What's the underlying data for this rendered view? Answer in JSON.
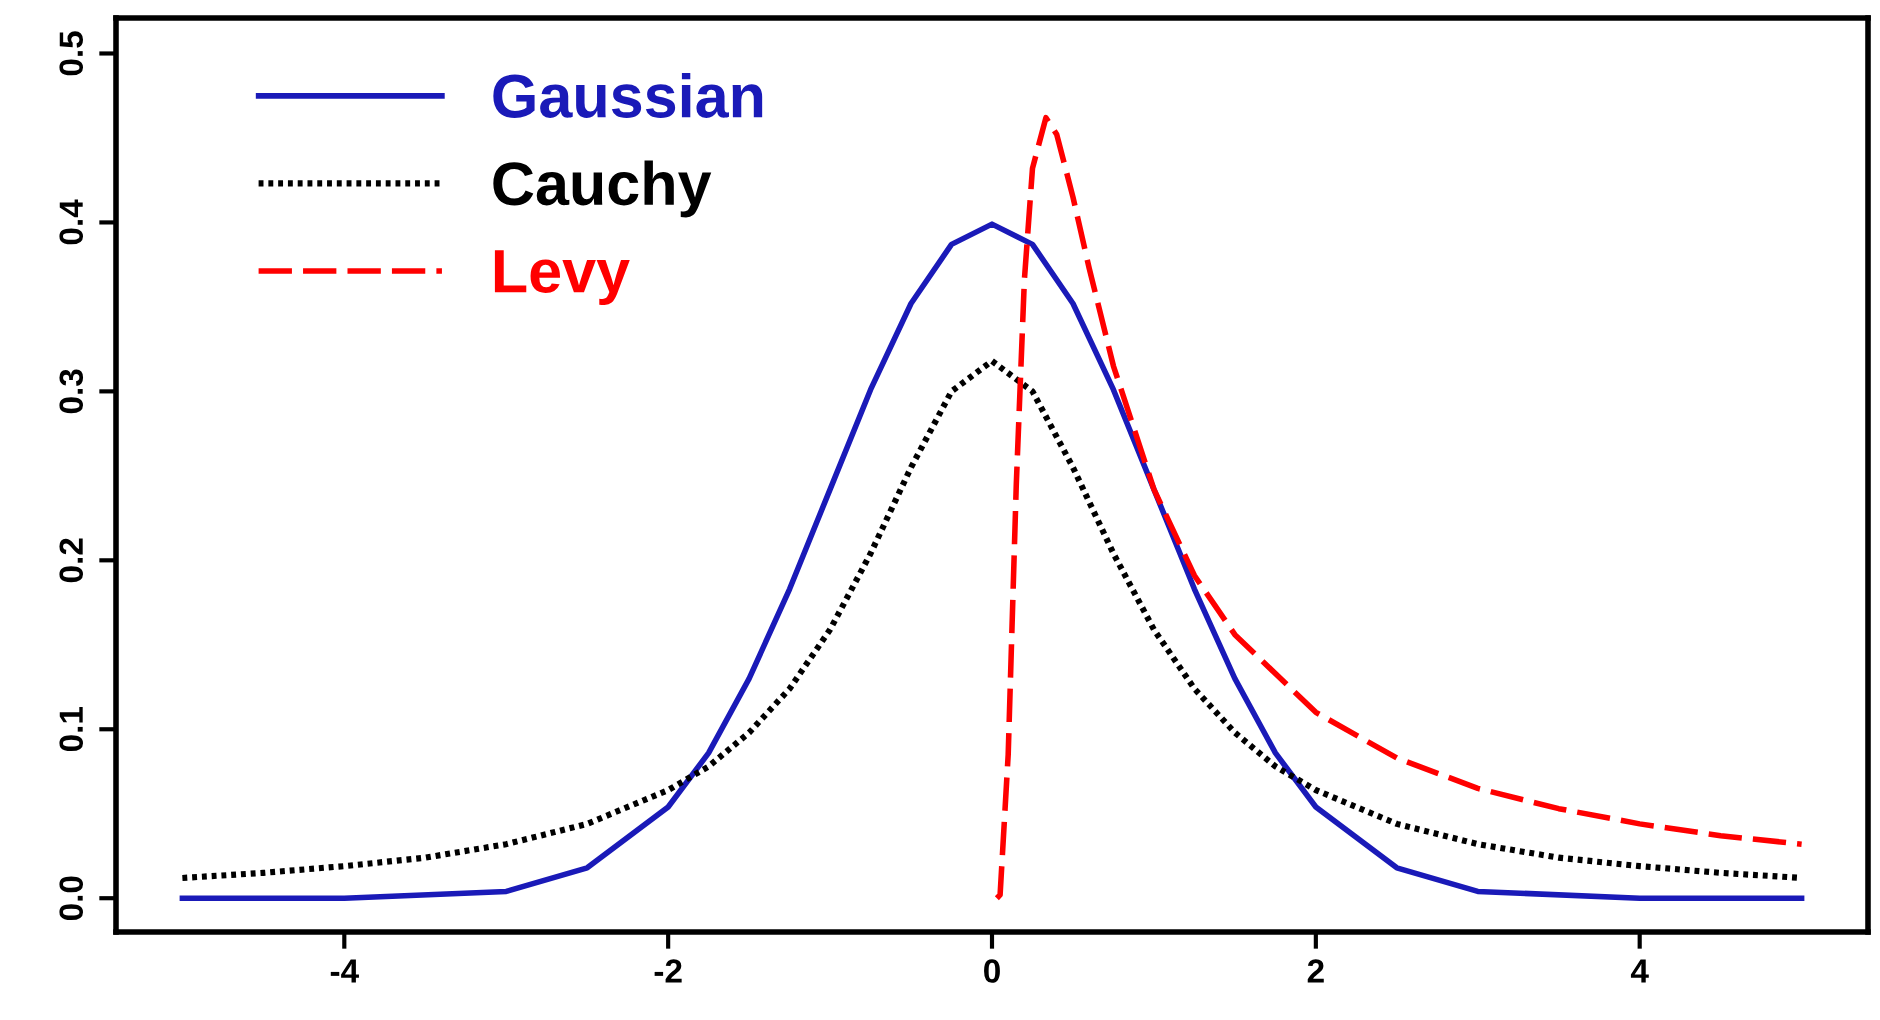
{
  "chart_data": {
    "type": "line",
    "xlim": [
      -5.41,
      5.41
    ],
    "ylim": [
      -0.02,
      0.521
    ],
    "xticks": [
      -4,
      -2,
      0,
      2,
      4
    ],
    "yticks": [
      {
        "value": 0,
        "label": "0.0"
      },
      0.1,
      0.2,
      0.3,
      0.4,
      0.5
    ],
    "grid": false,
    "legend": "top left",
    "marker": "none",
    "series": [
      {
        "name": "Gaussian",
        "color": "#1a1ab8",
        "line_style": "solid",
        "x": [
          -5,
          -4,
          -3,
          -2.5,
          -2,
          -1.75,
          -1.5,
          -1.25,
          -1,
          -0.75,
          -0.5,
          -0.25,
          0,
          0.25,
          0.5,
          0.75,
          1,
          1.25,
          1.5,
          1.75,
          2,
          2.5,
          3,
          4,
          5
        ],
        "values": [
          0.0,
          0.0,
          0.004,
          0.018,
          0.054,
          0.086,
          0.13,
          0.183,
          0.242,
          0.301,
          0.352,
          0.387,
          0.399,
          0.387,
          0.352,
          0.301,
          0.242,
          0.183,
          0.13,
          0.086,
          0.054,
          0.018,
          0.004,
          0.0,
          0.0
        ]
      },
      {
        "name": "Cauchy",
        "color": "#000000",
        "line_style": "dotted",
        "x": [
          -5,
          -4.5,
          -4,
          -3.5,
          -3,
          -2.5,
          -2,
          -1.75,
          -1.5,
          -1.25,
          -1,
          -0.75,
          -0.5,
          -0.25,
          0,
          0.25,
          0.5,
          0.75,
          1,
          1.25,
          1.5,
          1.75,
          2,
          2.5,
          3,
          3.5,
          4,
          4.5,
          5
        ],
        "values": [
          0.012,
          0.015,
          0.019,
          0.024,
          0.032,
          0.044,
          0.064,
          0.078,
          0.098,
          0.124,
          0.159,
          0.204,
          0.255,
          0.3,
          0.318,
          0.3,
          0.255,
          0.204,
          0.159,
          0.124,
          0.098,
          0.078,
          0.064,
          0.044,
          0.032,
          0.024,
          0.019,
          0.015,
          0.012
        ]
      },
      {
        "name": "Levy",
        "color": "#ff0000",
        "line_style": "dashed",
        "x": [
          0.03,
          0.05,
          0.1,
          0.15,
          0.2,
          0.25,
          0.333,
          0.4,
          0.5,
          0.6,
          0.75,
          1,
          1.25,
          1.5,
          2,
          2.5,
          3,
          3.5,
          4,
          4.5,
          5
        ],
        "values": [
          0.0,
          0.002,
          0.085,
          0.245,
          0.366,
          0.432,
          0.462,
          0.452,
          0.415,
          0.373,
          0.315,
          0.242,
          0.191,
          0.156,
          0.11,
          0.083,
          0.065,
          0.053,
          0.044,
          0.037,
          0.032
        ]
      }
    ]
  }
}
